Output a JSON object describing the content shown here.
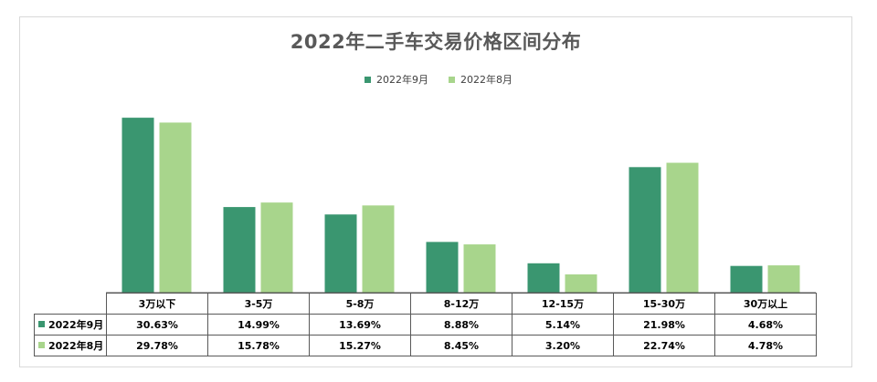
{
  "chart_data": {
    "type": "bar",
    "title": "2022年二手车交易价格区间分布",
    "categories": [
      "3万以下",
      "3-5万",
      "5-8万",
      "8-12万",
      "12-15万",
      "15-30万",
      "30万以上"
    ],
    "series": [
      {
        "name": "2022年9月",
        "color": "#3a9670",
        "values": [
          30.63,
          14.99,
          13.69,
          8.88,
          5.14,
          21.98,
          4.68
        ],
        "labels": [
          "30.63%",
          "14.99%",
          "13.69%",
          "8.88%",
          "5.14%",
          "21.98%",
          "4.68%"
        ]
      },
      {
        "name": "2022年8月",
        "color": "#a8d58c",
        "values": [
          29.78,
          15.78,
          15.27,
          8.45,
          3.2,
          22.74,
          4.78
        ],
        "labels": [
          "29.78%",
          "15.78%",
          "15.27%",
          "8.45%",
          "3.20%",
          "22.74%",
          "4.78%"
        ]
      }
    ],
    "ylim": [
      0,
      34
    ],
    "grid": false,
    "legend": "top-center",
    "data_table": true
  }
}
